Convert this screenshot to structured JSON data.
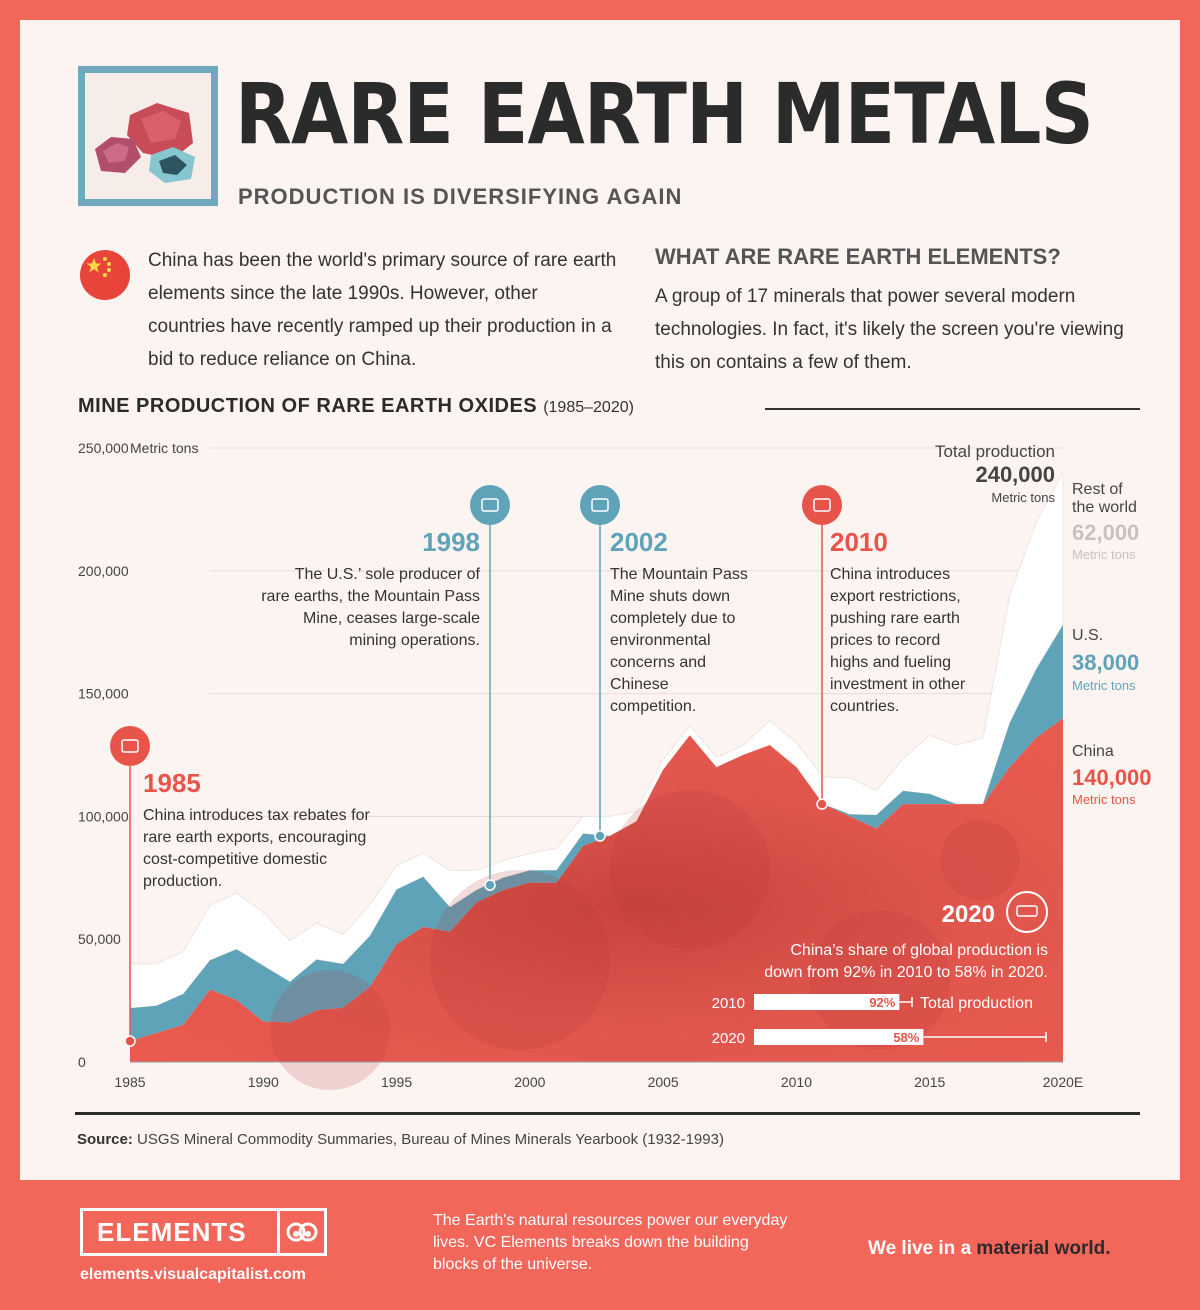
{
  "header": {
    "title": "RARE EARTH METALS",
    "subtitle": "PRODUCTION IS DIVERSIFYING AGAIN"
  },
  "intro": "China has been the world's primary source of rare earth elements since the late 1990s. However, other countries have recently ramped up their production in a bid to reduce reliance on China.",
  "what": {
    "heading": "WHAT ARE RARE EARTH ELEMENTS?",
    "body": "A group of 17 minerals that power several modern technologies. In fact, it's likely the screen you're viewing this on contains a few of them."
  },
  "chart_heading": {
    "title": "MINE PRODUCTION OF RARE EARTH OXIDES",
    "years": "(1985–2020)"
  },
  "colors": {
    "china": "#e9544a",
    "us": "#5fa3b9",
    "rest": "#ffffff",
    "frame": "#f3665a",
    "panel": "#fcf4f1"
  },
  "chart_data": {
    "type": "area",
    "stacked": true,
    "y_unit": "Metric tons",
    "ylim": [
      0,
      250000
    ],
    "y_ticks": [
      0,
      50000,
      100000,
      150000,
      200000,
      250000
    ],
    "y_tick_labels": [
      "0",
      "50,000",
      "100,000",
      "150,000",
      "200,000",
      "250,000"
    ],
    "x_ticks": [
      "1985",
      "1990",
      "1995",
      "2000",
      "2005",
      "2010",
      "2015",
      "2020E"
    ],
    "x": [
      1985,
      1986,
      1987,
      1988,
      1989,
      1990,
      1991,
      1992,
      1993,
      1994,
      1995,
      1996,
      1997,
      1998,
      1999,
      2000,
      2001,
      2002,
      2003,
      2004,
      2005,
      2006,
      2007,
      2008,
      2009,
      2010,
      2011,
      2012,
      2013,
      2014,
      2015,
      2016,
      2017,
      2018,
      2019,
      2020
    ],
    "series": [
      {
        "name": "China",
        "values": [
          8500,
          11800,
          15100,
          29500,
          25200,
          16500,
          16100,
          21000,
          22100,
          30600,
          48000,
          55000,
          53000,
          65000,
          70000,
          73000,
          73000,
          88000,
          92000,
          98000,
          119000,
          133000,
          120000,
          125000,
          129000,
          120000,
          105000,
          100000,
          95000,
          105000,
          105000,
          105000,
          105000,
          120000,
          132000,
          140000
        ]
      },
      {
        "name": "U.S.",
        "values": [
          13400,
          11100,
          12600,
          11900,
          20700,
          22700,
          16500,
          20700,
          17800,
          20700,
          22200,
          20400,
          10000,
          5000,
          5000,
          5000,
          5000,
          5000,
          0,
          0,
          0,
          0,
          0,
          0,
          0,
          0,
          0,
          800,
          5500,
          5400,
          4100,
          0,
          0,
          18000,
          28000,
          38000
        ]
      },
      {
        "name": "Rest of the world",
        "values": [
          18100,
          17100,
          17300,
          22400,
          22900,
          21800,
          16800,
          14800,
          12100,
          12700,
          9800,
          9600,
          15000,
          8000,
          7000,
          7000,
          9000,
          7000,
          8000,
          4000,
          4000,
          4000,
          4000,
          4000,
          10000,
          10000,
          11000,
          15000,
          10000,
          13000,
          24000,
          24000,
          27000,
          52000,
          60000,
          62000
        ]
      }
    ],
    "totals_2020": {
      "total": {
        "label": "Total production",
        "value": "240,000",
        "unit": "Metric tons"
      },
      "rest": {
        "label": "Rest of the world",
        "value": "62,000",
        "unit": "Metric tons"
      },
      "us": {
        "label": "U.S.",
        "value": "38,000",
        "unit": "Metric tons"
      },
      "china": {
        "label": "China",
        "value": "140,000",
        "unit": "Metric tons"
      }
    },
    "annotations": [
      {
        "year": "1985",
        "x": 1985,
        "y": 8500,
        "text": "China introduces tax rebates for rare earth exports, encouraging cost-competitive domestic production.",
        "color": "#e9544a",
        "icon": "ship-icon"
      },
      {
        "year": "1998",
        "x": 1998.5,
        "y": 72000,
        "text": "The U.S.’ sole producer of rare earths, the Mountain Pass Mine, ceases large-scale mining operations.",
        "color": "#5fa3b9",
        "icon": "mine-icon"
      },
      {
        "year": "2002",
        "x": 2002.7,
        "y": 92000,
        "text": "The Mountain Pass Mine shuts down completely due to environmental concerns and Chinese competition.",
        "color": "#5fa3b9",
        "icon": "barrier-icon"
      },
      {
        "year": "2010",
        "x": 2011,
        "y": 105000,
        "text": "China introduces export restrictions, pushing rare earth prices to record highs and fueling investment in other countries.",
        "color": "#e9544a",
        "icon": "no-export-icon"
      }
    ],
    "share_panel": {
      "year": "2020",
      "text": "China’s share of global production is down from 92% in 2010 to 58% in 2020.",
      "total_label": "Total production",
      "bars": [
        {
          "year": "2010",
          "share": 92,
          "label": "92%"
        },
        {
          "year": "2020",
          "share": 58,
          "label": "58%"
        }
      ]
    }
  },
  "source": {
    "label": "Source:",
    "text": "USGS Mineral Commodity Summaries, Bureau of Mines Minerals Yearbook (1932-1993)"
  },
  "footer": {
    "logo": "ELEMENTS",
    "url": "elements.visualcapitalist.com",
    "text": "The Earth's natural resources power our everyday lives. VC Elements breaks down the building blocks of the universe.",
    "tagline_prefix": "We live in a ",
    "tagline_em": "material world."
  }
}
